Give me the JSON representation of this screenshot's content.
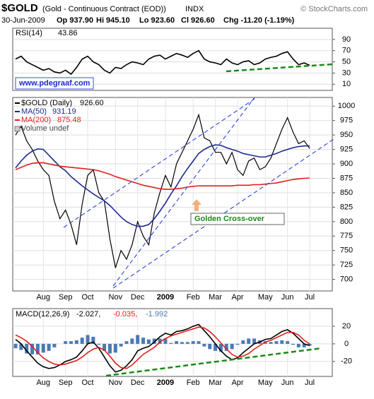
{
  "header": {
    "symbol": "$GOLD",
    "description": "(Gold - Continuous Contract (EOD))",
    "exchange": "INDX",
    "source": "© StockCharts.com",
    "date": "30-Jun-2009",
    "quote": [
      "Op 937.90",
      "Hi 945.10",
      "Lo 923.60",
      "Cl 926.60",
      "Chg -11.20 (-1.19%)"
    ]
  },
  "chart_data": [
    {
      "type": "line",
      "label": "RSI(14)",
      "readout": "43.86",
      "ylim": [
        -1,
        110
      ],
      "yticks": [
        90,
        70,
        50,
        30,
        10
      ],
      "grid": true,
      "series": [
        {
          "color": "#000000",
          "values": [
            55,
            60,
            50,
            45,
            40,
            35,
            38,
            32,
            30,
            35,
            28,
            40,
            55,
            60,
            50,
            45,
            35,
            30,
            40,
            38,
            45,
            50,
            48,
            45,
            55,
            60,
            62,
            55,
            60,
            65,
            62,
            58,
            65,
            70,
            55,
            50,
            48,
            45,
            55,
            48,
            45,
            50,
            52,
            45,
            48,
            55,
            58,
            60,
            65,
            68,
            55,
            45,
            48,
            43.86
          ]
        }
      ]
    },
    {
      "type": "line",
      "ylim": [
        680,
        1015
      ],
      "yticks": [
        700,
        725,
        750,
        775,
        800,
        825,
        850,
        875,
        900,
        925,
        950,
        975,
        1000
      ],
      "grid": true,
      "categories": [
        null,
        null,
        null,
        null,
        null,
        "Aug",
        null,
        null,
        null,
        "Sep",
        null,
        null,
        null,
        "Oct",
        null,
        null,
        null,
        null,
        "Nov",
        null,
        null,
        null,
        "Dec",
        null,
        null,
        null,
        null,
        "2009",
        null,
        null,
        null,
        null,
        "Feb",
        null,
        null,
        null,
        "Mar",
        null,
        null,
        null,
        "Apr",
        null,
        null,
        null,
        null,
        "May",
        null,
        null,
        null,
        "Jun",
        null,
        null,
        null,
        "Jul"
      ],
      "series": [
        {
          "name": "$GOLD (Daily)",
          "readout": "926.60",
          "color": "#000000",
          "values": [
            950,
            965,
            940,
            925,
            905,
            890,
            880,
            835,
            805,
            820,
            795,
            760,
            830,
            880,
            890,
            850,
            835,
            770,
            720,
            750,
            735,
            760,
            800,
            775,
            760,
            815,
            850,
            880,
            860,
            900,
            920,
            940,
            960,
            985,
            945,
            940,
            920,
            920,
            900,
            920,
            890,
            880,
            905,
            910,
            890,
            895,
            910,
            935,
            960,
            980,
            955,
            935,
            940,
            926.6
          ]
        },
        {
          "name": "MA(50)",
          "readout": "931.19",
          "color": "#1c2a8c",
          "values": [
            893,
            905,
            915,
            922,
            926,
            925,
            915,
            905,
            895,
            888,
            878,
            870,
            862,
            855,
            848,
            842,
            836,
            828,
            818,
            808,
            800,
            795,
            792,
            792,
            795,
            805,
            818,
            832,
            848,
            862,
            878,
            892,
            905,
            918,
            925,
            930,
            933,
            932,
            928,
            925,
            922,
            918,
            916,
            914,
            912,
            912,
            915,
            918,
            922,
            925,
            928,
            930,
            931,
            931.19
          ]
        },
        {
          "name": "MA(200)",
          "readout": "875.48",
          "color": "#e0201b",
          "values": [
            890,
            894,
            898,
            901,
            902,
            902,
            900,
            898,
            896,
            895,
            894,
            893,
            892,
            891,
            890,
            888,
            885,
            882,
            878,
            875,
            872,
            869,
            866,
            863,
            861,
            859,
            857,
            856,
            856,
            857,
            858,
            860,
            861,
            862,
            862,
            862,
            862,
            862,
            862,
            862,
            863,
            863,
            863,
            864,
            864,
            865,
            866,
            867,
            869,
            871,
            873,
            874,
            875,
            875.48
          ]
        }
      ],
      "legend_extra": "Volume undef",
      "annotations": [
        "www.pdegraaf.com",
        "Golden Cross-over"
      ]
    },
    {
      "type": "line",
      "label": "MACD(12,26,9)",
      "ylim": [
        -37,
        40
      ],
      "yticks": [
        20,
        0,
        -20
      ],
      "grid": true,
      "categories": [
        null,
        null,
        null,
        null,
        null,
        "Aug",
        null,
        null,
        null,
        "Sep",
        null,
        null,
        null,
        "Oct",
        null,
        null,
        null,
        null,
        "Nov",
        null,
        null,
        null,
        "Dec",
        null,
        null,
        null,
        null,
        "2009",
        null,
        null,
        null,
        null,
        "Feb",
        null,
        null,
        null,
        "Mar",
        null,
        null,
        null,
        "Apr",
        null,
        null,
        null,
        null,
        "May",
        null,
        null,
        null,
        "Jun",
        null,
        null,
        null,
        "Jul"
      ],
      "series": [
        {
          "type": "bar",
          "readout": "-1.992",
          "color": "#4a7ab5",
          "values": [
            -5,
            -7,
            -11,
            -12,
            -12,
            -10,
            -8,
            -4,
            0,
            3,
            3,
            4,
            7,
            10,
            8,
            -1,
            -8,
            -11,
            -10,
            -3,
            3,
            6,
            10,
            7,
            5,
            6,
            6,
            6,
            1,
            3,
            2,
            2,
            3,
            3,
            -3,
            -6,
            -8,
            -9,
            -8,
            -6,
            -1,
            4,
            6,
            6,
            4,
            3,
            2,
            3,
            4,
            3,
            -1,
            -4,
            -4,
            -1.992
          ]
        },
        {
          "type": "line",
          "readout": "-2.027,",
          "color": "#000000",
          "values": [
            5,
            0,
            -8,
            -15,
            -22,
            -26,
            -28,
            -27,
            -24,
            -20,
            -18,
            -15,
            -8,
            0,
            2,
            -5,
            -15,
            -25,
            -32,
            -30,
            -25,
            -18,
            -8,
            -5,
            -3,
            2,
            8,
            12,
            10,
            14,
            15,
            17,
            20,
            22,
            15,
            8,
            0,
            -8,
            -14,
            -18,
            -16,
            -10,
            -5,
            0,
            2,
            5,
            6,
            10,
            14,
            16,
            12,
            6,
            0,
            -2.027
          ]
        },
        {
          "type": "line",
          "readout": "-0.035,",
          "color": "#e0201b",
          "values": [
            10,
            7,
            3,
            -3,
            -10,
            -16,
            -20,
            -23,
            -24,
            -23,
            -21,
            -19,
            -15,
            -10,
            -6,
            -4,
            -7,
            -14,
            -22,
            -27,
            -28,
            -24,
            -18,
            -12,
            -8,
            -4,
            2,
            6,
            9,
            11,
            13,
            15,
            17,
            19,
            18,
            14,
            8,
            1,
            -6,
            -12,
            -15,
            -14,
            -11,
            -6,
            -2,
            2,
            4,
            7,
            10,
            13,
            13,
            10,
            4,
            -0.035
          ]
        }
      ]
    }
  ]
}
